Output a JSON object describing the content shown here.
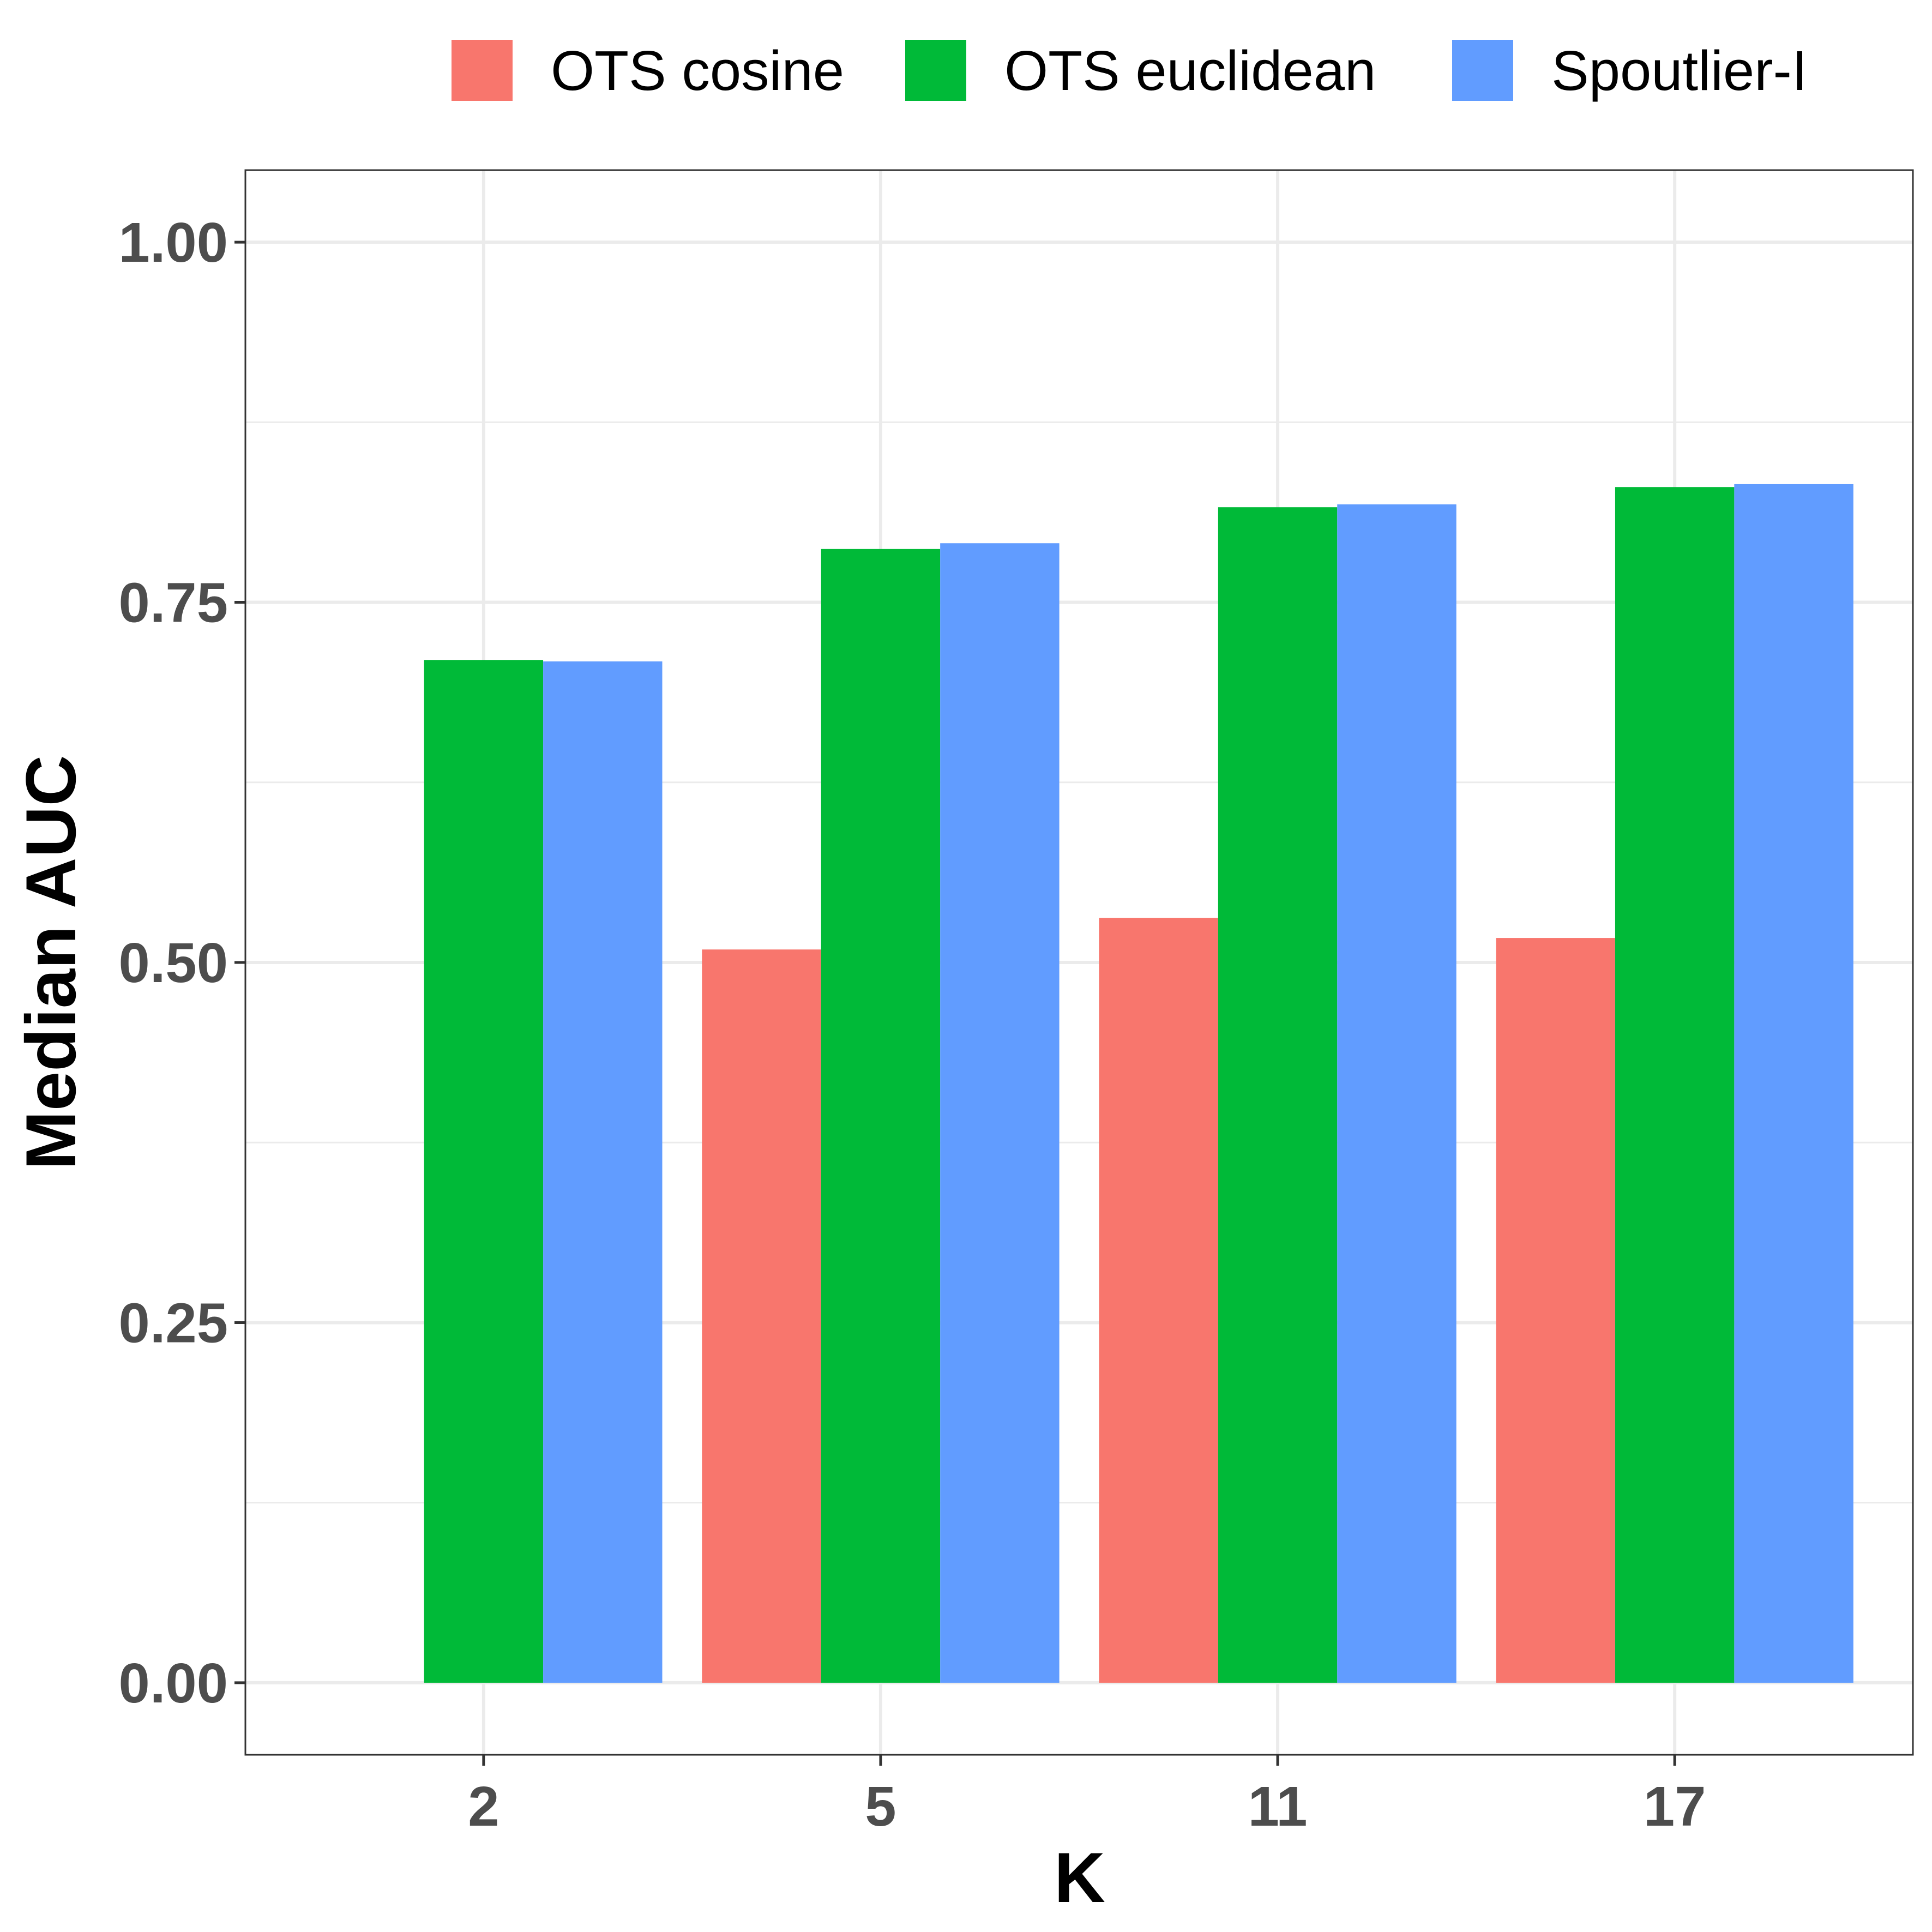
{
  "chart_data": {
    "type": "bar",
    "title": "",
    "xlabel": "K",
    "ylabel": "Median AUC",
    "categories": [
      "2",
      "5",
      "11",
      "17"
    ],
    "series": [
      {
        "name": "OTS cosine",
        "color": "#F8766D",
        "values": [
          null,
          0.509,
          0.531,
          0.517
        ]
      },
      {
        "name": "OTS euclidean",
        "color": "#00BA38",
        "values": [
          0.71,
          0.787,
          0.816,
          0.83
        ]
      },
      {
        "name": "Spoutlier-I",
        "color": "#619CFF",
        "values": [
          0.709,
          0.791,
          0.818,
          0.832
        ]
      }
    ],
    "ylim": [
      -0.05,
      1.05
    ],
    "yticks": [
      0.0,
      0.25,
      0.5,
      0.75,
      1.0
    ],
    "ytick_labels": [
      "0.00",
      "0.25",
      "0.50",
      "0.75",
      "1.00"
    ],
    "grid": true,
    "legend_position": "top"
  }
}
